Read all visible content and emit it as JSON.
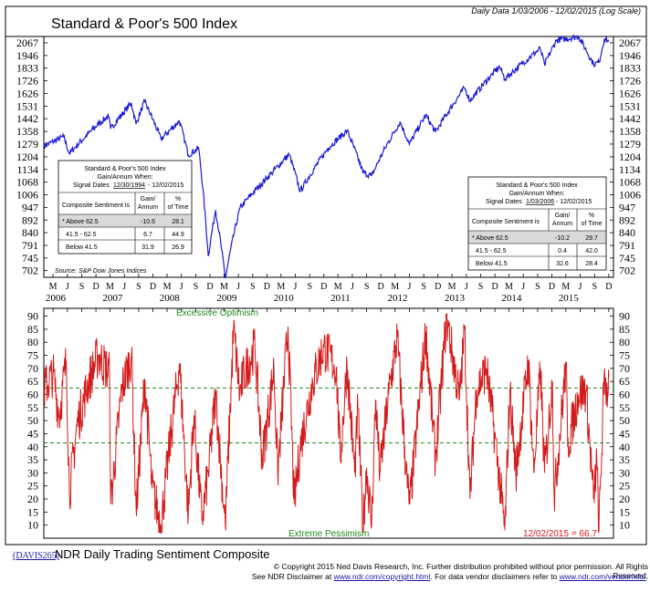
{
  "header": {
    "title": "Standard & Poor's 500 Index",
    "range_note": "Daily Data 1/03/2006 - 12/02/2015 (Log Scale)",
    "source": "Source: S&P Dow Jones Indices"
  },
  "colors": {
    "price_line": "#1a1ad6",
    "sentiment_line": "#d41a1a",
    "guide_line": "#1e8a1e",
    "final_value": "#d41a1a",
    "shaded_row": "#d9d9d9"
  },
  "tables": {
    "left": {
      "title": "Standard & Poor's 500 Index",
      "subtitle": "Gain/Annum When:",
      "dates_prefix": "Signal Dates",
      "dates_start": "12/30/1994",
      "dates_end": "- 12/02/2015",
      "col1": "Composite Sentiment is",
      "col2a": "Gain/",
      "col2b": "Annum",
      "col3a": "%",
      "col3b": "of Time",
      "rows": [
        {
          "label": "* Above 62.5",
          "gain": "-10.6",
          "time": "28.1"
        },
        {
          "label": "41.5 - 62.5",
          "gain": "6.7",
          "time": "44.9"
        },
        {
          "label": "Below 41.5",
          "gain": "31.9",
          "time": "26.9"
        }
      ]
    },
    "right": {
      "title": "Standard & Poor's 500 Index",
      "subtitle": "Gain/Annum When:",
      "dates_prefix": "Signal Dates",
      "dates_start": "1/03/2006",
      "dates_end": "- 12/02/2015",
      "col1": "Composite Sentiment is",
      "col2a": "Gain/",
      "col2b": "Annum",
      "col3a": "%",
      "col3b": "of Time",
      "rows": [
        {
          "label": "* Above 62.5",
          "gain": "-10.2",
          "time": "29.7"
        },
        {
          "label": "41.5 - 62.5",
          "gain": "0.4",
          "time": "42.0"
        },
        {
          "label": "Below 41.5",
          "gain": "32.6",
          "time": "28.4"
        }
      ]
    }
  },
  "x_axis": {
    "month_letters": [
      "M",
      "J",
      "S",
      "D",
      "M",
      "J",
      "S",
      "D",
      "M",
      "J",
      "S",
      "D",
      "M",
      "J",
      "S",
      "D",
      "M",
      "J",
      "S",
      "D",
      "M",
      "J",
      "S",
      "D",
      "M",
      "J",
      "S",
      "D",
      "M",
      "J",
      "S",
      "D",
      "M",
      "J",
      "S",
      "D",
      "M",
      "J",
      "S",
      "D"
    ],
    "years": [
      "2006",
      "2007",
      "2008",
      "2009",
      "2010",
      "2011",
      "2012",
      "2013",
      "2014",
      "2015"
    ]
  },
  "lower": {
    "top_label": "Excessive Optimism",
    "bottom_label": "Extreme Pessimism",
    "final_label": "12/02/2015 = 66.7"
  },
  "footer": {
    "code": "(DAVIS265)",
    "subtitle": "NDR Daily Trading Sentiment Composite",
    "line1": "© Copyright 2015 Ned Davis Research, Inc. Further distribution prohibited without prior permission. All Rights Reserved.",
    "line2_a": "See NDR Disclaimer at ",
    "line2_link1": "www.ndr.com/copyright.html",
    "line2_b": ". For data vendor disclaimers refer to ",
    "line2_link2": "www.ndr.com/vendorinfo/",
    "line2_c": "."
  },
  "chart_data": [
    {
      "type": "line",
      "title": "Standard & Poor's 500 Index",
      "scale": "log",
      "ylim": [
        680,
        2130
      ],
      "y_ticks": [
        702,
        745,
        791,
        840,
        892,
        947,
        1006,
        1068,
        1134,
        1204,
        1279,
        1358,
        1442,
        1531,
        1626,
        1726,
        1833,
        1946,
        2067
      ],
      "series": [
        {
          "x": [
            "2006-01-03",
            "2006-05-08",
            "2006-06-13",
            "2006-12-29",
            "2007-02-20",
            "2007-03-05",
            "2007-07-16",
            "2007-08-15",
            "2007-10-09",
            "2008-01-22",
            "2008-05-19",
            "2008-07-15",
            "2008-09-19",
            "2008-11-20",
            "2009-01-06",
            "2009-03-09",
            "2009-06-12",
            "2009-12-31",
            "2010-04-23",
            "2010-07-02",
            "2010-12-31",
            "2011-04-29",
            "2011-08-08",
            "2011-10-03",
            "2011-12-30",
            "2012-04-02",
            "2012-06-01",
            "2012-09-14",
            "2012-11-15",
            "2013-05-21",
            "2013-06-24",
            "2013-12-31",
            "2014-02-03",
            "2014-09-18",
            "2014-10-15",
            "2014-12-29",
            "2015-05-21",
            "2015-08-25",
            "2015-09-29",
            "2015-11-03",
            "2015-12-02"
          ],
          "values": [
            1268,
            1325,
            1223,
            1418,
            1460,
            1375,
            1553,
            1406,
            1565,
            1310,
            1426,
            1214,
            1255,
            752,
            935,
            677,
            946,
            1115,
            1217,
            1022,
            1258,
            1363,
            1119,
            1099,
            1258,
            1419,
            1278,
            1466,
            1353,
            1669,
            1573,
            1848,
            1741,
            2011,
            1862,
            2090,
            2130,
            1868,
            1884,
            2109,
            2079
          ]
        }
      ]
    },
    {
      "type": "line",
      "title": "NDR Daily Trading Sentiment Composite",
      "ylim": [
        5,
        93
      ],
      "y_ticks": [
        10,
        15,
        20,
        25,
        30,
        35,
        40,
        45,
        50,
        55,
        60,
        65,
        70,
        75,
        80,
        85,
        90
      ],
      "reference_lines": [
        62.5,
        41.5
      ],
      "series": [
        {
          "x": [
            "2006-01-03",
            "2006-03-01",
            "2006-04-10",
            "2006-05-25",
            "2006-06-14",
            "2006-08-01",
            "2006-10-15",
            "2006-12-15",
            "2007-02-26",
            "2007-03-06",
            "2007-05-15",
            "2007-07-17",
            "2007-08-16",
            "2007-10-10",
            "2007-11-26",
            "2008-01-22",
            "2008-03-17",
            "2008-05-19",
            "2008-07-15",
            "2008-08-20",
            "2008-10-10",
            "2008-11-20",
            "2009-01-06",
            "2009-03-09",
            "2009-05-01",
            "2009-06-10",
            "2009-07-08",
            "2009-09-15",
            "2009-11-01",
            "2010-01-15",
            "2010-02-08",
            "2010-04-15",
            "2010-05-25",
            "2010-07-02",
            "2010-09-20",
            "2010-11-30",
            "2011-02-18",
            "2011-03-16",
            "2011-04-28",
            "2011-06-16",
            "2011-07-07",
            "2011-08-08",
            "2011-09-01",
            "2011-10-03",
            "2011-10-28",
            "2011-11-25",
            "2012-01-20",
            "2012-03-15",
            "2012-05-18",
            "2012-06-04",
            "2012-09-14",
            "2012-11-15",
            "2013-01-25",
            "2013-04-18",
            "2013-05-21",
            "2013-06-24",
            "2013-08-05",
            "2013-10-08",
            "2013-11-29",
            "2014-02-03",
            "2014-03-07",
            "2014-04-14",
            "2014-07-03",
            "2014-08-07",
            "2014-09-19",
            "2014-10-15",
            "2014-12-05",
            "2014-12-16",
            "2015-03-02",
            "2015-03-12",
            "2015-05-20",
            "2015-07-08",
            "2015-08-25",
            "2015-09-15",
            "2015-09-29",
            "2015-11-04",
            "2015-11-16",
            "2015-12-02"
          ],
          "values": [
            62,
            68,
            52,
            73,
            22,
            48,
            65,
            75,
            68,
            18,
            62,
            75,
            15,
            66,
            24,
            10,
            40,
            72,
            14,
            52,
            12,
            30,
            60,
            10,
            85,
            60,
            68,
            78,
            35,
            70,
            30,
            86,
            18,
            40,
            65,
            78,
            70,
            35,
            72,
            30,
            55,
            9,
            32,
            10,
            58,
            30,
            60,
            82,
            25,
            18,
            84,
            35,
            90,
            58,
            85,
            20,
            62,
            70,
            45,
            8,
            62,
            30,
            73,
            30,
            70,
            30,
            65,
            20,
            72,
            40,
            60,
            62,
            20,
            35,
            8,
            70,
            60,
            66.7
          ]
        }
      ]
    }
  ]
}
